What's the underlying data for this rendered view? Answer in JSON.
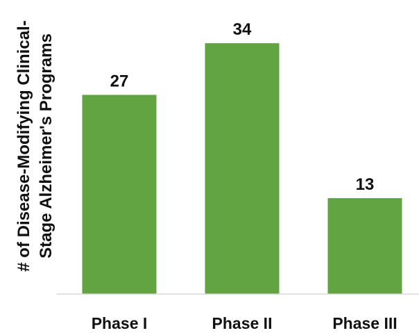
{
  "chart_data": {
    "type": "bar",
    "title": "",
    "xlabel": "",
    "ylabel_lines": [
      "# of Disease-Modifying Clinical-",
      "Stage Alzheimer's Programs"
    ],
    "categories": [
      "Phase I",
      "Phase II",
      "Phase III"
    ],
    "values": [
      27,
      34,
      13
    ],
    "value_labels": [
      "27",
      "34",
      "13"
    ],
    "ylim": [
      0,
      37.5
    ],
    "grid": false,
    "bar_color": "#62a342",
    "axis_color": "#d9d9d9"
  }
}
